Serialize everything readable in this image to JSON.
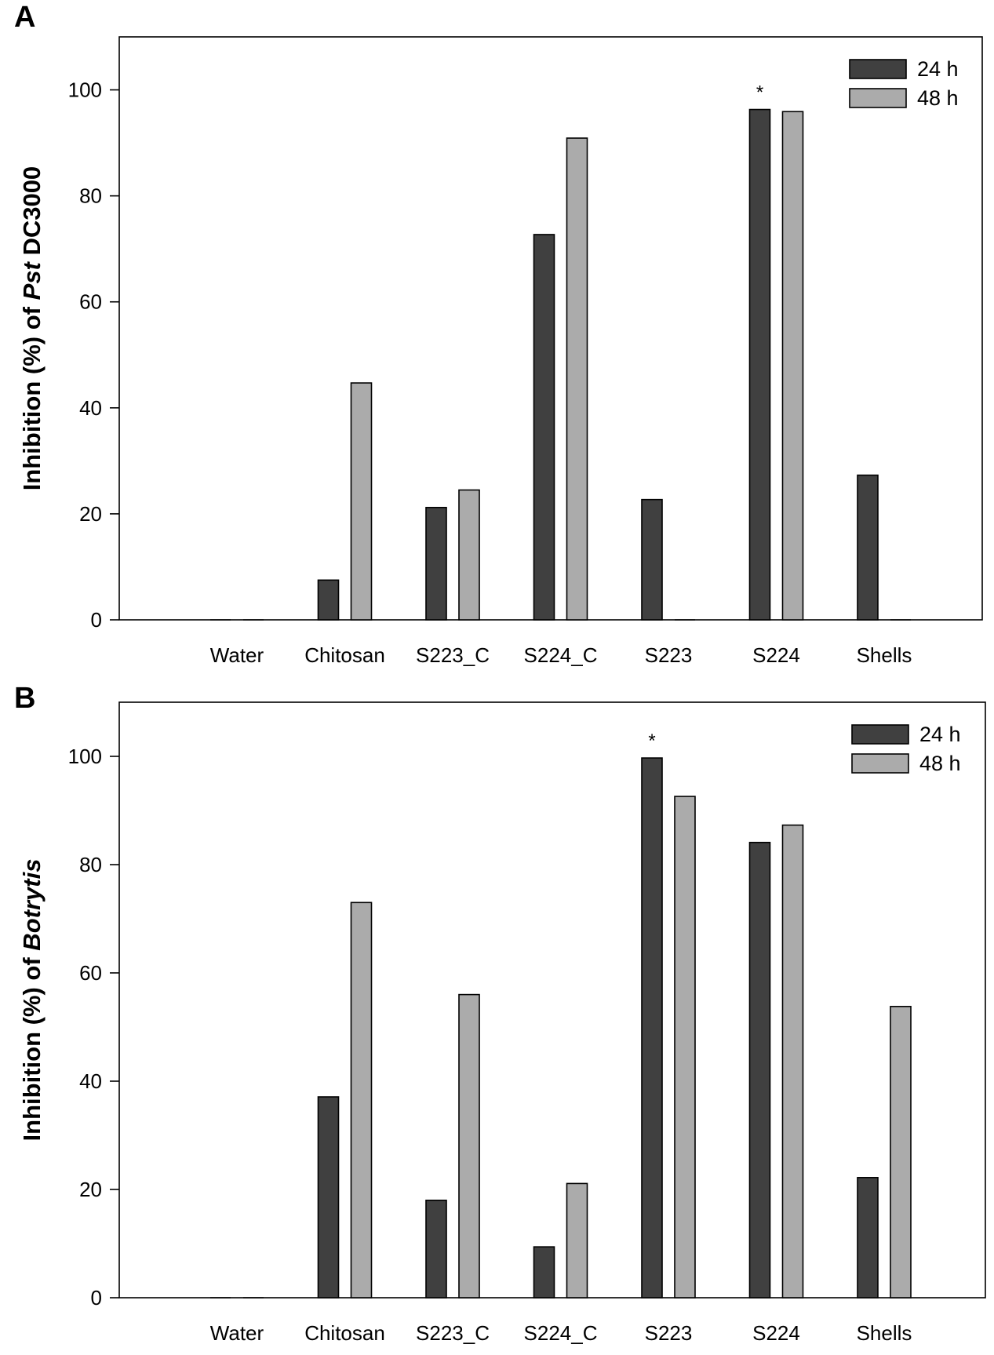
{
  "colors": {
    "series_24h": "#404040",
    "series_48h": "#ababab",
    "axis": "#000000"
  },
  "chart_data": [
    {
      "panel": "A",
      "type": "bar",
      "ylabel_prefix": "Inhibition (%) of ",
      "ylabel_italic": "Pst",
      "ylabel_suffix": " DC3000",
      "ylim": [
        0,
        110
      ],
      "yticks": [
        0,
        20,
        40,
        60,
        80,
        100
      ],
      "categories": [
        "Water",
        "Chitosan",
        "S223_C",
        "S224_C",
        "S223",
        "S224",
        "Shells"
      ],
      "series": [
        {
          "name": "24 h",
          "values": [
            0,
            7.5,
            21.2,
            72.7,
            22.7,
            96.3,
            27.3
          ]
        },
        {
          "name": "48 h",
          "values": [
            0,
            44.7,
            24.5,
            90.9,
            0,
            95.9,
            0
          ]
        }
      ],
      "annotations": [
        {
          "text": "*",
          "category": "S224",
          "series": "24 h"
        }
      ],
      "legend_position": "top-right"
    },
    {
      "panel": "B",
      "type": "bar",
      "ylabel_prefix": "Inhibition (%) of ",
      "ylabel_italic": "Botrytis",
      "ylabel_suffix": "",
      "ylim": [
        0,
        110
      ],
      "yticks": [
        0,
        20,
        40,
        60,
        80,
        100
      ],
      "categories": [
        "Water",
        "Chitosan",
        "S223_C",
        "S224_C",
        "S223",
        "S224",
        "Shells"
      ],
      "series": [
        {
          "name": "24 h",
          "values": [
            0,
            37.1,
            18.0,
            9.4,
            99.7,
            84.1,
            22.2
          ]
        },
        {
          "name": "48 h",
          "values": [
            0,
            73.0,
            56.0,
            21.1,
            92.6,
            87.3,
            53.8
          ]
        }
      ],
      "annotations": [
        {
          "text": "*",
          "category": "S223",
          "series": "24 h"
        }
      ],
      "legend_position": "top-right"
    }
  ]
}
